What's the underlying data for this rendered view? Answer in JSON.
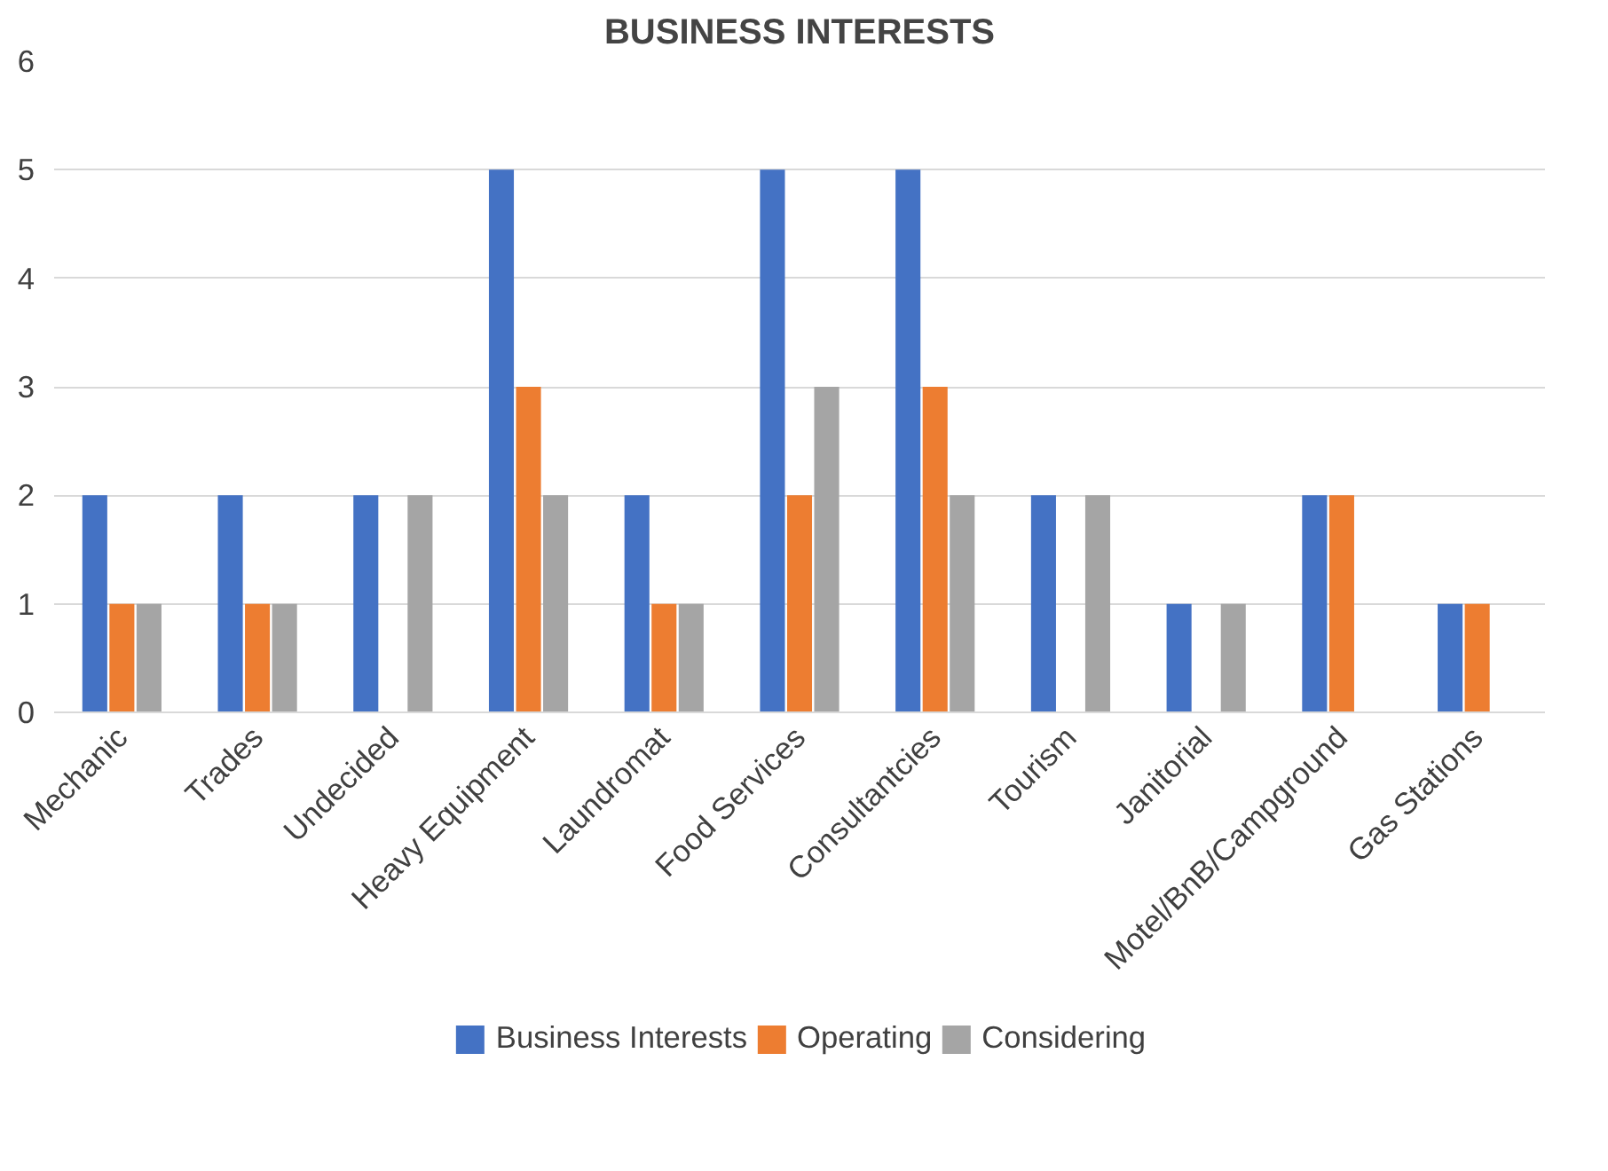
{
  "chart_data": {
    "type": "bar",
    "title": "BUSINESS INTERESTS",
    "categories": [
      "Mechanic",
      "Trades",
      "Undecided",
      "Heavy Equipment",
      "Laundromat",
      "Food Services",
      "Consultantcies",
      "Tourism",
      "Janitorial",
      "Motel/BnB/Campground",
      "Gas Stations"
    ],
    "series": [
      {
        "name": "Business Interests",
        "color": "#4472c4",
        "values": [
          2,
          2,
          2,
          5,
          2,
          5,
          5,
          2,
          1,
          2,
          1
        ]
      },
      {
        "name": "Operating",
        "color": "#ed7d31",
        "values": [
          1,
          1,
          0,
          3,
          1,
          2,
          3,
          0,
          0,
          2,
          1
        ]
      },
      {
        "name": "Considering",
        "color": "#a5a5a5",
        "values": [
          1,
          1,
          2,
          2,
          1,
          3,
          2,
          2,
          1,
          0,
          0
        ]
      }
    ],
    "ylim": [
      0,
      6
    ],
    "yticks": [
      0,
      1,
      2,
      3,
      4,
      5,
      6
    ],
    "grid": "y",
    "legend": "bottom"
  }
}
